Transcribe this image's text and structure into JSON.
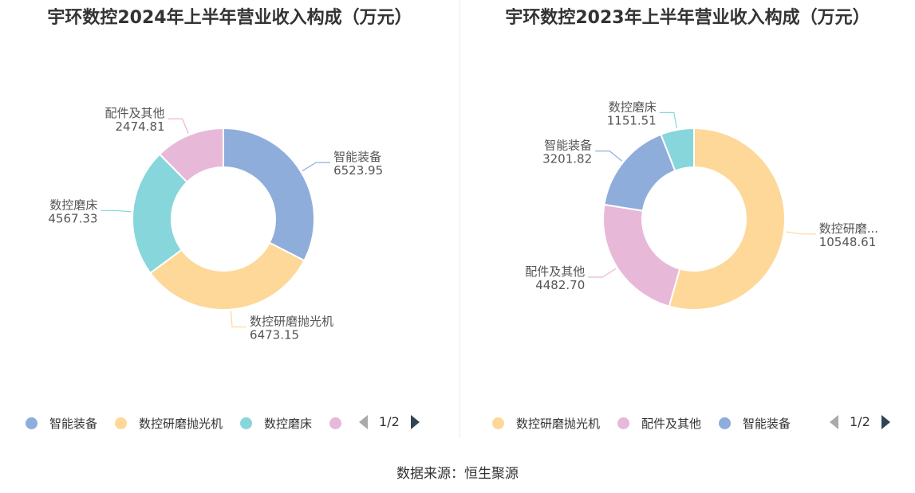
{
  "source_text": "数据来源：恒生聚源",
  "chart_data": [
    {
      "type": "pie",
      "title": "宇环数控2024年上半年营业收入构成（万元）",
      "slices": [
        {
          "label": "智能装备",
          "value": 6523.95,
          "value_text": "6523.95",
          "color": "#8eaddb"
        },
        {
          "label": "数控研磨抛光机",
          "value": 6473.15,
          "value_text": "6473.15",
          "color": "#fdd898"
        },
        {
          "label": "数控磨床",
          "value": 4567.33,
          "value_text": "4567.33",
          "color": "#87d6db"
        },
        {
          "label": "配件及其他",
          "value": 2474.81,
          "value_text": "2474.81",
          "color": "#e8b8d9"
        }
      ],
      "legend": {
        "items": [
          {
            "label": "智能装备",
            "color": "#8eaddb"
          },
          {
            "label": "数控研磨抛光机",
            "color": "#fdd898"
          },
          {
            "label": "数控磨床",
            "color": "#87d6db"
          },
          {
            "label": "",
            "color": "#e8b8d9"
          }
        ],
        "page": "1/2"
      }
    },
    {
      "type": "pie",
      "title": "宇环数控2023年上半年营业收入构成（万元）",
      "slices": [
        {
          "label": "数控研磨...",
          "value": 10548.61,
          "value_text": "10548.61",
          "color": "#fdd898"
        },
        {
          "label": "配件及其他",
          "value": 4482.7,
          "value_text": "4482.70",
          "color": "#e8b8d9"
        },
        {
          "label": "智能装备",
          "value": 3201.82,
          "value_text": "3201.82",
          "color": "#8eaddb"
        },
        {
          "label": "数控磨床",
          "value": 1151.51,
          "value_text": "1151.51",
          "color": "#87d6db"
        }
      ],
      "legend": {
        "items": [
          {
            "label": "数控研磨抛光机",
            "color": "#fdd898"
          },
          {
            "label": "配件及其他",
            "color": "#e8b8d9"
          },
          {
            "label": "智能装备",
            "color": "#8eaddb"
          }
        ],
        "page": "1/2"
      }
    }
  ]
}
